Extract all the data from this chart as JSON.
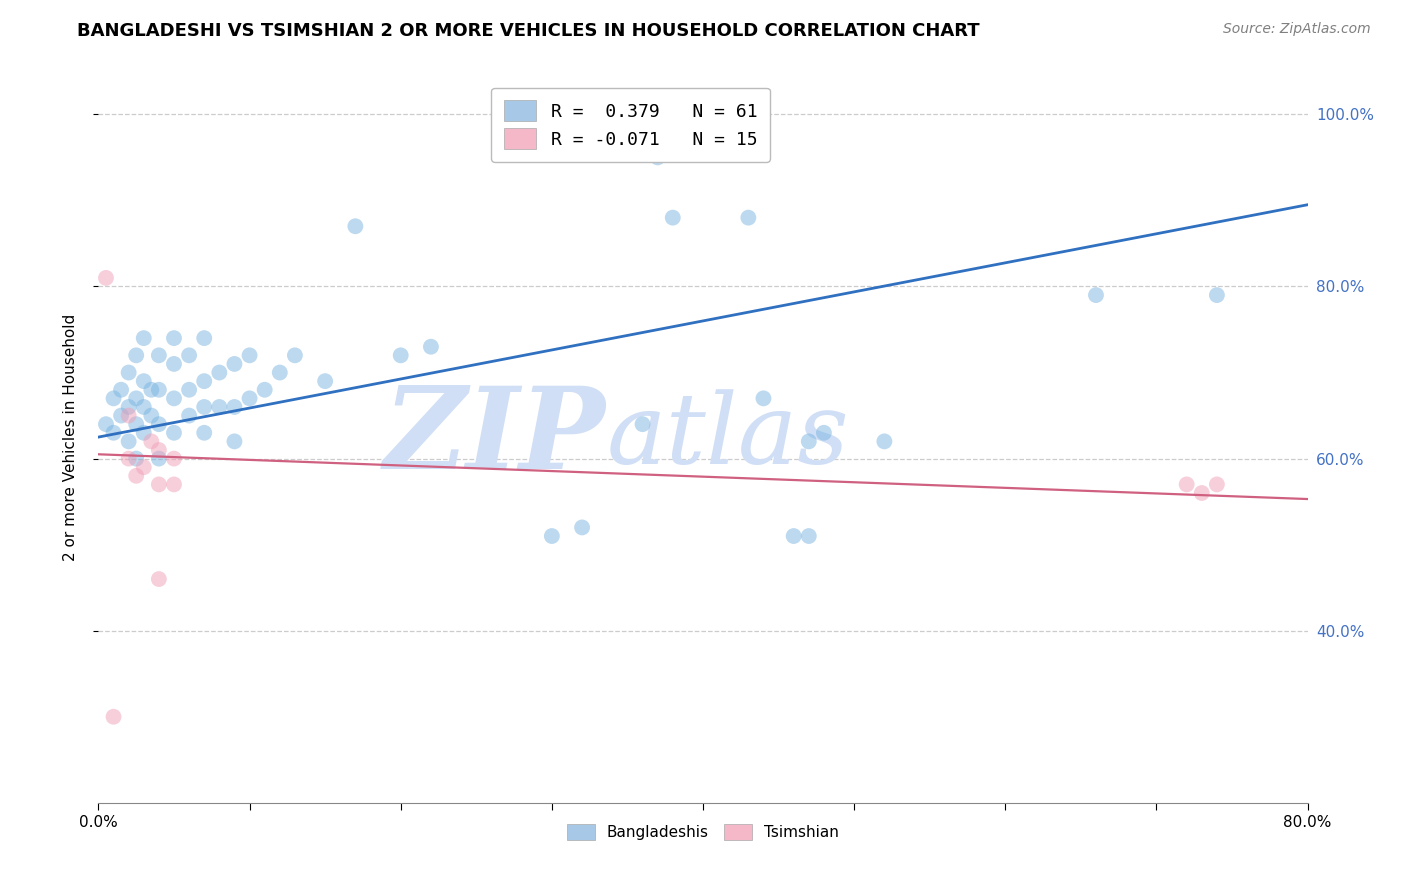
{
  "title": "BANGLADESHI VS TSIMSHIAN 2 OR MORE VEHICLES IN HOUSEHOLD CORRELATION CHART",
  "source": "Source: ZipAtlas.com",
  "ylabel": "2 or more Vehicles in Household",
  "xlim": [
    0.0,
    0.8
  ],
  "ylim": [
    0.2,
    1.05
  ],
  "x_ticks": [
    0.0,
    0.1,
    0.2,
    0.3,
    0.4,
    0.5,
    0.6,
    0.7,
    0.8
  ],
  "x_tick_labels_show": [
    "0.0%",
    "",
    "",
    "",
    "",
    "",
    "",
    "",
    "80.0%"
  ],
  "y_ticks": [
    0.4,
    0.6,
    0.8,
    1.0
  ],
  "y_tick_labels_right": [
    "40.0%",
    "60.0%",
    "80.0%",
    "100.0%"
  ],
  "legend_items": [
    {
      "label": "R =  0.379   N = 61",
      "color": "#a8c8e8"
    },
    {
      "label": "R = -0.071   N = 15",
      "color": "#f4b8c8"
    }
  ],
  "blue_scatter_x": [
    0.005,
    0.01,
    0.01,
    0.015,
    0.015,
    0.02,
    0.02,
    0.02,
    0.025,
    0.025,
    0.025,
    0.025,
    0.03,
    0.03,
    0.03,
    0.03,
    0.035,
    0.035,
    0.04,
    0.04,
    0.04,
    0.04,
    0.05,
    0.05,
    0.05,
    0.05,
    0.06,
    0.06,
    0.06,
    0.07,
    0.07,
    0.07,
    0.07,
    0.08,
    0.08,
    0.09,
    0.09,
    0.09,
    0.1,
    0.1,
    0.11,
    0.12,
    0.13,
    0.15,
    0.17,
    0.2,
    0.22,
    0.3,
    0.32,
    0.36,
    0.37,
    0.38,
    0.43,
    0.44,
    0.46,
    0.47,
    0.47,
    0.48,
    0.52,
    0.66,
    0.74
  ],
  "blue_scatter_y": [
    0.64,
    0.63,
    0.67,
    0.65,
    0.68,
    0.62,
    0.66,
    0.7,
    0.6,
    0.64,
    0.67,
    0.72,
    0.63,
    0.66,
    0.69,
    0.74,
    0.65,
    0.68,
    0.6,
    0.64,
    0.68,
    0.72,
    0.63,
    0.67,
    0.71,
    0.74,
    0.65,
    0.68,
    0.72,
    0.63,
    0.66,
    0.69,
    0.74,
    0.66,
    0.7,
    0.62,
    0.66,
    0.71,
    0.67,
    0.72,
    0.68,
    0.7,
    0.72,
    0.69,
    0.87,
    0.72,
    0.73,
    0.51,
    0.52,
    0.64,
    0.95,
    0.88,
    0.88,
    0.67,
    0.51,
    0.51,
    0.62,
    0.63,
    0.62,
    0.79,
    0.79
  ],
  "pink_scatter_x": [
    0.005,
    0.01,
    0.02,
    0.02,
    0.025,
    0.03,
    0.035,
    0.04,
    0.04,
    0.04,
    0.05,
    0.05,
    0.72,
    0.73,
    0.74
  ],
  "pink_scatter_y": [
    0.81,
    0.3,
    0.6,
    0.65,
    0.58,
    0.59,
    0.62,
    0.46,
    0.57,
    0.61,
    0.57,
    0.6,
    0.57,
    0.56,
    0.57
  ],
  "blue_line_x0": 0.0,
  "blue_line_x1": 0.8,
  "blue_line_y0": 0.625,
  "blue_line_y1": 0.895,
  "pink_line_x0": 0.0,
  "pink_line_x1": 0.8,
  "pink_line_y0": 0.605,
  "pink_line_y1": 0.553,
  "blue_scatter_color": "#7ab4e0",
  "pink_scatter_color": "#f0a0b8",
  "blue_line_color": "#3070c0",
  "pink_line_color": "#d06080",
  "watermark_zip": "ZIP",
  "watermark_atlas": "atlas",
  "watermark_color": "#d0dff5",
  "grid_color": "#cccccc",
  "title_fontsize": 13,
  "label_fontsize": 11,
  "tick_fontsize": 11,
  "source_fontsize": 10,
  "legend_fontsize": 13,
  "scatter_size": 130,
  "scatter_alpha": 0.5,
  "right_tick_color": "#4472c4"
}
